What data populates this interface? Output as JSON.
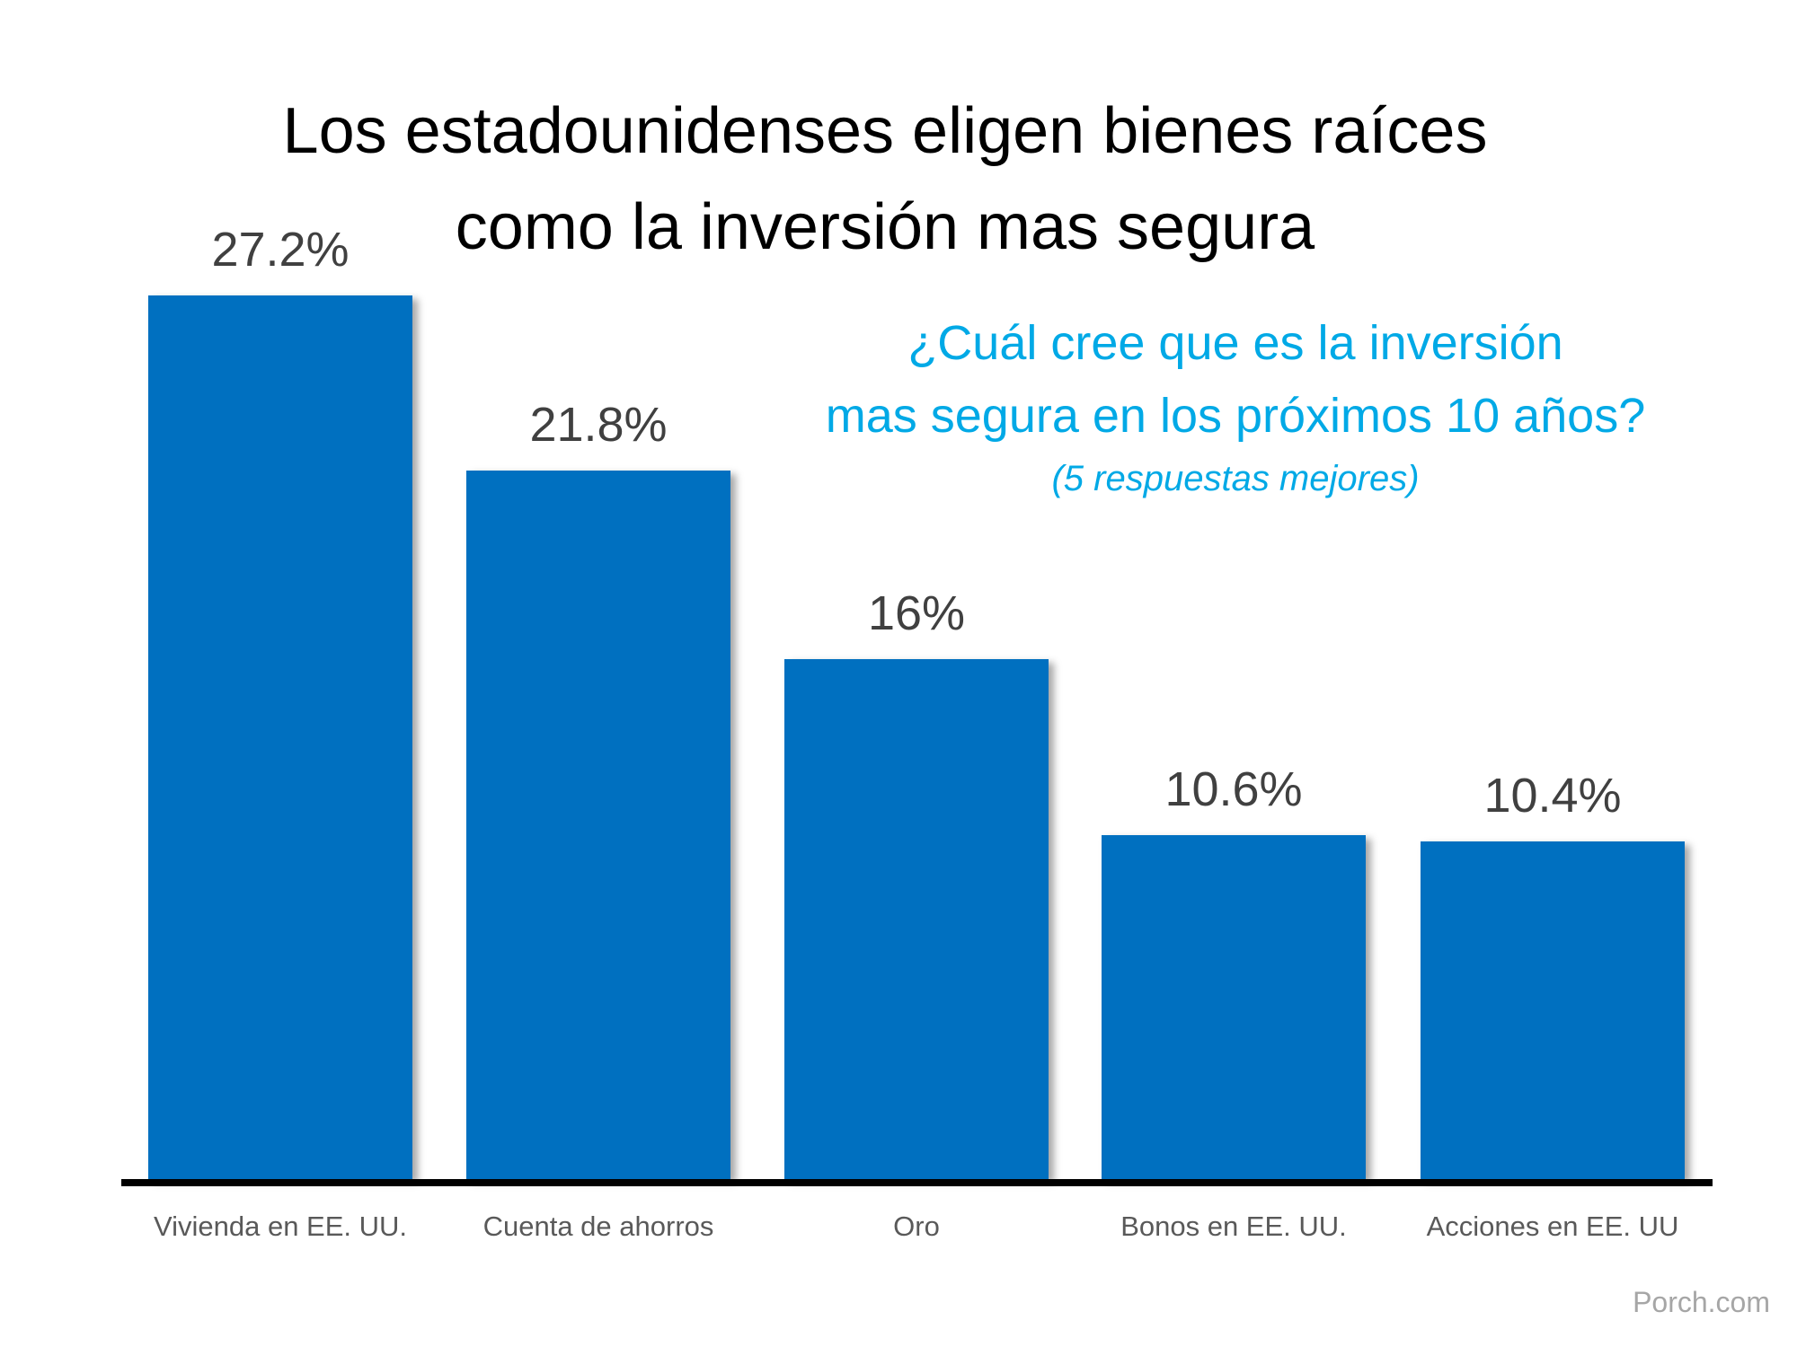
{
  "chart_data": {
    "type": "bar",
    "title": "Los estadounidenses eligen bienes raíces como la inversión mas segura",
    "title_lines": [
      "Los estadounidenses eligen bienes raíces",
      "como la inversión mas segura"
    ],
    "subtitle_lines": [
      "¿Cuál cree que es la inversión",
      "mas segura en los próximos 10 años?"
    ],
    "note": "(5 respuestas mejores)",
    "categories": [
      "Vivienda en EE. UU.",
      "Cuenta de ahorros",
      "Oro",
      "Bonos en EE. UU.",
      "Acciones en EE. UU"
    ],
    "values": [
      27.2,
      21.8,
      16,
      10.6,
      10.4
    ],
    "value_labels": [
      "27.2%",
      "21.8%",
      "16%",
      "10.6%",
      "10.4%"
    ],
    "xlabel": "",
    "ylabel": "",
    "ylim": [
      0,
      27.2
    ],
    "grid": false,
    "source": "Porch.com",
    "colors": {
      "bar": "#0070C0",
      "subtitle": "#00A9E6"
    }
  }
}
